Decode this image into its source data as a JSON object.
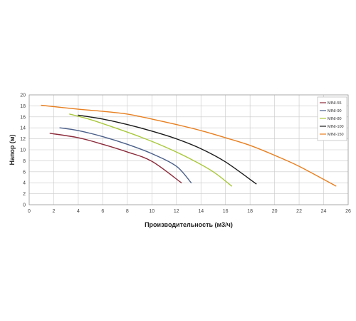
{
  "chart_data": {
    "type": "line",
    "xlabel": "Производительность (м3/ч)",
    "ylabel": "Напор (м)",
    "xlim": [
      0,
      26
    ],
    "ylim": [
      0,
      20
    ],
    "x_ticks": [
      0,
      2,
      4,
      6,
      8,
      10,
      12,
      14,
      16,
      18,
      20,
      22,
      24,
      26
    ],
    "y_ticks": [
      0,
      2,
      4,
      6,
      8,
      10,
      12,
      14,
      16,
      18,
      20
    ],
    "grid": true,
    "legend_position": "top-right",
    "series": [
      {
        "name": "MINI-55",
        "color": "#8b2a3a",
        "points": [
          [
            1.7,
            13.0
          ],
          [
            4,
            12.2
          ],
          [
            6,
            11.0
          ],
          [
            8,
            9.6
          ],
          [
            10,
            7.9
          ],
          [
            12.4,
            4.0
          ]
        ]
      },
      {
        "name": "MINI-90",
        "color": "#4a5f8a",
        "points": [
          [
            2.5,
            14.0
          ],
          [
            4,
            13.5
          ],
          [
            6,
            12.4
          ],
          [
            8,
            11.0
          ],
          [
            10,
            9.3
          ],
          [
            12,
            7.0
          ],
          [
            13.2,
            4.0
          ]
        ]
      },
      {
        "name": "MINI-80",
        "color": "#a8c83a",
        "points": [
          [
            3.3,
            16.5
          ],
          [
            5,
            15.5
          ],
          [
            7,
            14.0
          ],
          [
            9,
            12.4
          ],
          [
            11,
            10.6
          ],
          [
            13,
            8.5
          ],
          [
            15,
            6.0
          ],
          [
            16.5,
            3.4
          ]
        ]
      },
      {
        "name": "MINI-100",
        "color": "#1a1a1a",
        "points": [
          [
            4,
            16.3
          ],
          [
            6,
            15.6
          ],
          [
            8,
            14.6
          ],
          [
            10,
            13.4
          ],
          [
            12,
            12.0
          ],
          [
            14,
            10.2
          ],
          [
            16,
            7.8
          ],
          [
            18.5,
            3.8
          ]
        ]
      },
      {
        "name": "MINI-150",
        "color": "#e87f1f",
        "points": [
          [
            1,
            18.1
          ],
          [
            4,
            17.4
          ],
          [
            6,
            17.0
          ],
          [
            8,
            16.5
          ],
          [
            10,
            15.6
          ],
          [
            12,
            14.6
          ],
          [
            14,
            13.5
          ],
          [
            16,
            12.2
          ],
          [
            18,
            10.8
          ],
          [
            20,
            9.0
          ],
          [
            22,
            7.0
          ],
          [
            25,
            3.4
          ]
        ]
      }
    ]
  }
}
